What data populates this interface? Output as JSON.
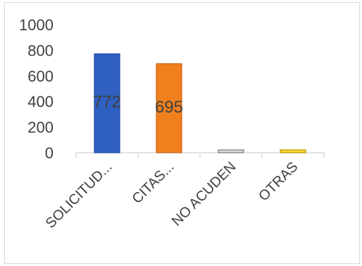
{
  "chart_data": {
    "type": "bar",
    "categories": [
      "SOLICITUD...",
      "CITAS...",
      "NO ACUDEN",
      "OTRAS"
    ],
    "values": [
      772,
      695,
      10,
      13
    ],
    "data_labels": [
      "772",
      "695",
      "",
      ""
    ],
    "yticks": [
      "0",
      "200",
      "400",
      "600",
      "800",
      "1000"
    ],
    "ylim": [
      0,
      1000
    ],
    "grid": false,
    "legend": "none",
    "colors": [
      "#2e5fc1",
      "#f07f1d",
      "#d9d9d9",
      "#ffd633"
    ],
    "edge_colors": [
      "#1f4ea8",
      "#c8651a",
      "#7f7f7f",
      "#b89600"
    ]
  }
}
